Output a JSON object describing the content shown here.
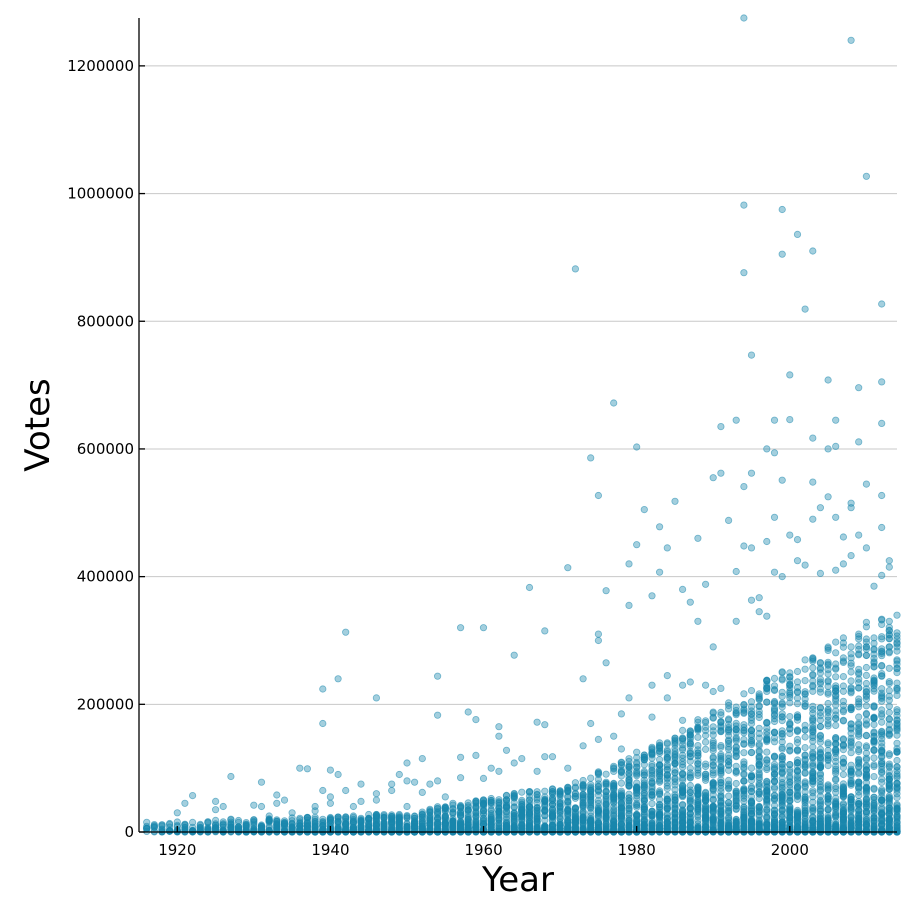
{
  "chart_data": {
    "type": "scatter",
    "title": "",
    "xlabel": "Year",
    "ylabel": "Votes",
    "xlim": [
      1915,
      2014
    ],
    "ylim": [
      0,
      1275000
    ],
    "xticks": [
      1920,
      1940,
      1960,
      1980,
      2000
    ],
    "yticks": [
      0,
      200000,
      400000,
      600000,
      800000,
      1000000,
      1200000
    ],
    "xtick_labels": [
      "1920",
      "1940",
      "1960",
      "1980",
      "2000"
    ],
    "ytick_labels": [
      "0",
      "200000",
      "400000",
      "600000",
      "800000",
      "1000000",
      "1200000"
    ],
    "grid": "horizontal",
    "legend": "none",
    "colors": {
      "point": "#1a86ad",
      "axis": "#000000",
      "grid": "#c8c8c8"
    },
    "series": [
      {
        "points": [
          [
            1916,
            9000
          ],
          [
            1918,
            3000
          ],
          [
            1920,
            30000
          ],
          [
            1921,
            45000
          ],
          [
            1922,
            57000
          ],
          [
            1924,
            15000
          ],
          [
            1925,
            48000
          ],
          [
            1925,
            35000
          ],
          [
            1926,
            40000
          ],
          [
            1927,
            87000
          ],
          [
            1927,
            20000
          ],
          [
            1928,
            15000
          ],
          [
            1929,
            10000
          ],
          [
            1930,
            42000
          ],
          [
            1931,
            78000
          ],
          [
            1931,
            40000
          ],
          [
            1932,
            25000
          ],
          [
            1933,
            58000
          ],
          [
            1933,
            45000
          ],
          [
            1934,
            50000
          ],
          [
            1935,
            30000
          ],
          [
            1936,
            100000
          ],
          [
            1937,
            99000
          ],
          [
            1938,
            40000
          ],
          [
            1938,
            33000
          ],
          [
            1939,
            170000
          ],
          [
            1939,
            224000
          ],
          [
            1939,
            65000
          ],
          [
            1940,
            97000
          ],
          [
            1940,
            55000
          ],
          [
            1940,
            45000
          ],
          [
            1941,
            240000
          ],
          [
            1941,
            90000
          ],
          [
            1942,
            313000
          ],
          [
            1942,
            65000
          ],
          [
            1943,
            40000
          ],
          [
            1944,
            75000
          ],
          [
            1944,
            48000
          ],
          [
            1946,
            210000
          ],
          [
            1946,
            60000
          ],
          [
            1946,
            50000
          ],
          [
            1948,
            75000
          ],
          [
            1948,
            65000
          ],
          [
            1949,
            90000
          ],
          [
            1950,
            108000
          ],
          [
            1950,
            80000
          ],
          [
            1950,
            40000
          ],
          [
            1951,
            78000
          ],
          [
            1952,
            115000
          ],
          [
            1952,
            62000
          ],
          [
            1953,
            75000
          ],
          [
            1954,
            244000
          ],
          [
            1954,
            183000
          ],
          [
            1954,
            80000
          ],
          [
            1955,
            55000
          ],
          [
            1956,
            45000
          ],
          [
            1957,
            320000
          ],
          [
            1957,
            117000
          ],
          [
            1957,
            85000
          ],
          [
            1958,
            188000
          ],
          [
            1959,
            176000
          ],
          [
            1959,
            120000
          ],
          [
            1960,
            320000
          ],
          [
            1960,
            84000
          ],
          [
            1961,
            100000
          ],
          [
            1962,
            165000
          ],
          [
            1962,
            150000
          ],
          [
            1962,
            95000
          ],
          [
            1963,
            128000
          ],
          [
            1964,
            277000
          ],
          [
            1964,
            108000
          ],
          [
            1965,
            115000
          ],
          [
            1966,
            383000
          ],
          [
            1967,
            172000
          ],
          [
            1967,
            95000
          ],
          [
            1968,
            315000
          ],
          [
            1968,
            168000
          ],
          [
            1968,
            118000
          ],
          [
            1969,
            118000
          ],
          [
            1970,
            60000
          ],
          [
            1971,
            414000
          ],
          [
            1971,
            100000
          ],
          [
            1972,
            882000
          ],
          [
            1973,
            240000
          ],
          [
            1973,
            135000
          ],
          [
            1974,
            586000
          ],
          [
            1974,
            170000
          ],
          [
            1975,
            527000
          ],
          [
            1975,
            310000
          ],
          [
            1975,
            300000
          ],
          [
            1975,
            145000
          ],
          [
            1976,
            378000
          ],
          [
            1976,
            265000
          ],
          [
            1977,
            672000
          ],
          [
            1977,
            150000
          ],
          [
            1978,
            185000
          ],
          [
            1978,
            130000
          ],
          [
            1979,
            420000
          ],
          [
            1979,
            355000
          ],
          [
            1979,
            210000
          ],
          [
            1980,
            603000
          ],
          [
            1980,
            450000
          ],
          [
            1980,
            125000
          ],
          [
            1981,
            505000
          ],
          [
            1982,
            370000
          ],
          [
            1982,
            230000
          ],
          [
            1982,
            180000
          ],
          [
            1983,
            478000
          ],
          [
            1983,
            407000
          ],
          [
            1984,
            445000
          ],
          [
            1984,
            245000
          ],
          [
            1984,
            210000
          ],
          [
            1985,
            518000
          ],
          [
            1986,
            380000
          ],
          [
            1986,
            230000
          ],
          [
            1986,
            175000
          ],
          [
            1987,
            360000
          ],
          [
            1987,
            235000
          ],
          [
            1988,
            460000
          ],
          [
            1988,
            330000
          ],
          [
            1989,
            388000
          ],
          [
            1989,
            230000
          ],
          [
            1990,
            555000
          ],
          [
            1990,
            290000
          ],
          [
            1990,
            220000
          ],
          [
            1991,
            635000
          ],
          [
            1991,
            562000
          ],
          [
            1991,
            225000
          ],
          [
            1992,
            488000
          ],
          [
            1993,
            645000
          ],
          [
            1993,
            408000
          ],
          [
            1993,
            330000
          ],
          [
            1994,
            1275000
          ],
          [
            1994,
            982000
          ],
          [
            1994,
            876000
          ],
          [
            1994,
            541000
          ],
          [
            1994,
            448000
          ],
          [
            1995,
            747000
          ],
          [
            1995,
            562000
          ],
          [
            1995,
            445000
          ],
          [
            1995,
            363000
          ],
          [
            1996,
            367000
          ],
          [
            1996,
            345000
          ],
          [
            1997,
            600000
          ],
          [
            1997,
            455000
          ],
          [
            1997,
            338000
          ],
          [
            1998,
            645000
          ],
          [
            1998,
            594000
          ],
          [
            1998,
            493000
          ],
          [
            1998,
            407000
          ],
          [
            1999,
            975000
          ],
          [
            1999,
            905000
          ],
          [
            1999,
            551000
          ],
          [
            1999,
            400000
          ],
          [
            2000,
            716000
          ],
          [
            2000,
            646000
          ],
          [
            2000,
            465000
          ],
          [
            2001,
            936000
          ],
          [
            2001,
            458000
          ],
          [
            2001,
            425000
          ],
          [
            2002,
            819000
          ],
          [
            2002,
            418000
          ],
          [
            2003,
            910000
          ],
          [
            2003,
            617000
          ],
          [
            2003,
            548000
          ],
          [
            2003,
            490000
          ],
          [
            2004,
            508000
          ],
          [
            2004,
            405000
          ],
          [
            2005,
            708000
          ],
          [
            2005,
            600000
          ],
          [
            2005,
            525000
          ],
          [
            2006,
            645000
          ],
          [
            2006,
            604000
          ],
          [
            2006,
            493000
          ],
          [
            2006,
            410000
          ],
          [
            2007,
            462000
          ],
          [
            2007,
            420000
          ],
          [
            2008,
            1240000
          ],
          [
            2008,
            515000
          ],
          [
            2008,
            508000
          ],
          [
            2008,
            433000
          ],
          [
            2009,
            696000
          ],
          [
            2009,
            611000
          ],
          [
            2009,
            465000
          ],
          [
            2010,
            1027000
          ],
          [
            2010,
            545000
          ],
          [
            2010,
            445000
          ],
          [
            2011,
            385000
          ],
          [
            2012,
            827000
          ],
          [
            2012,
            705000
          ],
          [
            2012,
            640000
          ],
          [
            2012,
            527000
          ],
          [
            2012,
            477000
          ],
          [
            2012,
            402000
          ],
          [
            2013,
            425000
          ],
          [
            2013,
            415000
          ],
          [
            2013,
            330000
          ]
        ],
        "dense_band": {
          "description_free": true,
          "x_start": 1916,
          "x_end": 2014,
          "max_votes_by_decade": [
            [
              1915,
              15000
            ],
            [
              1930,
              20000
            ],
            [
              1950,
              30000
            ],
            [
              1960,
              55000
            ],
            [
              1970,
              70000
            ],
            [
              1980,
              120000
            ],
            [
              1990,
              190000
            ],
            [
              2000,
              260000
            ],
            [
              2005,
              290000
            ],
            [
              2010,
              330000
            ],
            [
              2014,
              340000
            ]
          ]
        }
      }
    ]
  }
}
